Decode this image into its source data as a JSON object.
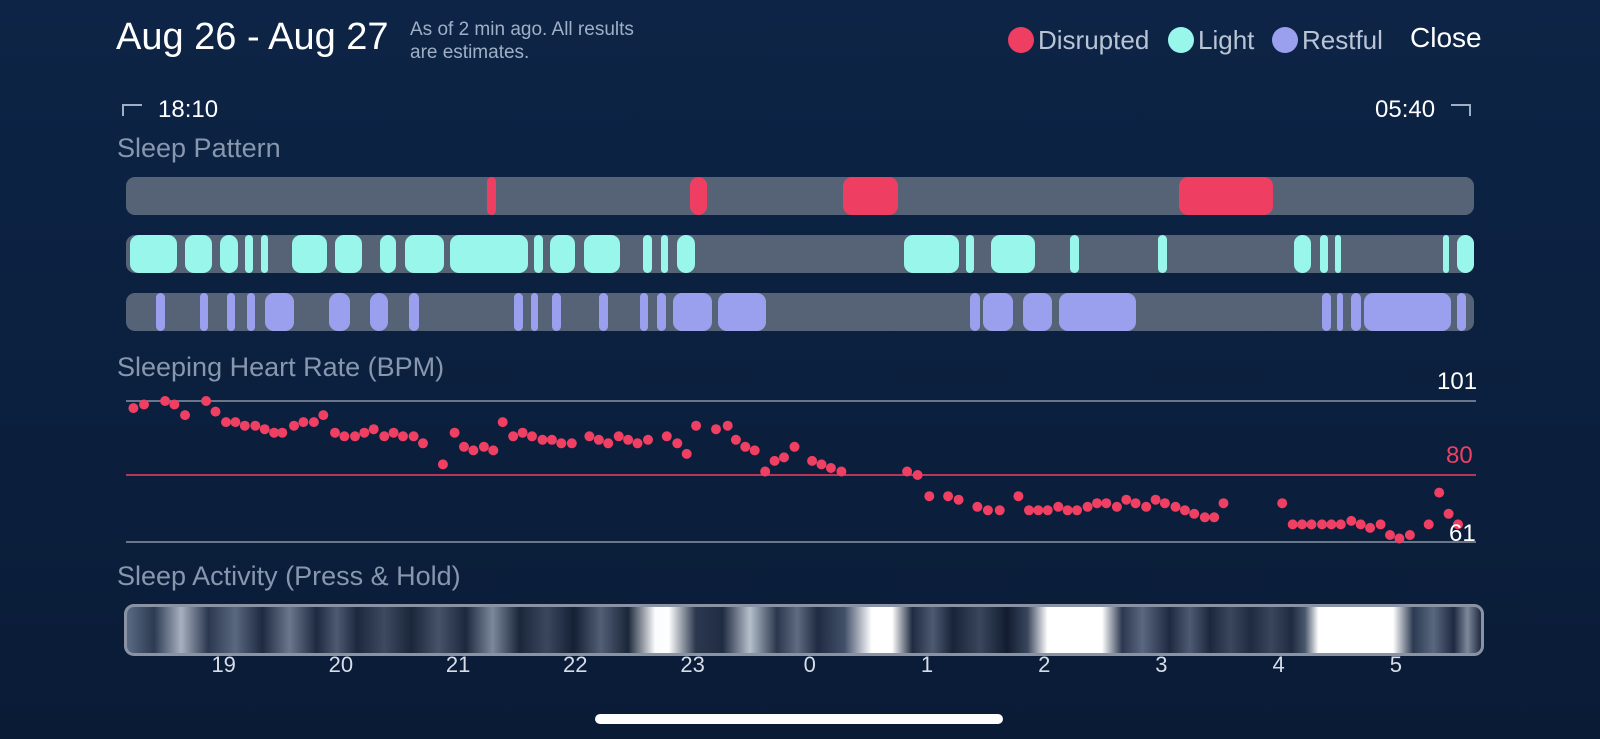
{
  "header": {
    "title": "Aug 26 - Aug 27",
    "subtitle_line1": "As of 2 min ago. All results",
    "subtitle_line2": "are estimates.",
    "legend": [
      {
        "label": "Disrupted",
        "color": "#ee3e62"
      },
      {
        "label": "Light",
        "color": "#98f7ea"
      },
      {
        "label": "Restful",
        "color": "#9aa0ee"
      }
    ],
    "close_label": "Close"
  },
  "range": {
    "start": "18:10",
    "end": "05:40"
  },
  "sleep_pattern": {
    "title": "Sleep Pattern",
    "colors": {
      "disrupted": "#ee3e62",
      "light": "#98f7ea",
      "restful": "#9aa0ee",
      "track": "#566377"
    },
    "disrupted": [
      [
        21.25,
        21.32
      ],
      [
        22.98,
        23.12
      ],
      [
        0.28,
        0.75
      ],
      [
        3.15,
        3.95
      ]
    ],
    "light": [
      [
        18.2,
        18.6
      ],
      [
        18.67,
        18.9
      ],
      [
        18.97,
        19.12
      ],
      [
        19.18,
        19.25
      ],
      [
        19.32,
        19.38
      ],
      [
        19.58,
        19.88
      ],
      [
        19.95,
        20.18
      ],
      [
        20.33,
        20.47
      ],
      [
        20.55,
        20.88
      ],
      [
        20.93,
        21.6
      ],
      [
        21.65,
        21.72
      ],
      [
        21.78,
        22.0
      ],
      [
        22.07,
        22.38
      ],
      [
        22.58,
        22.65
      ],
      [
        22.73,
        22.79
      ],
      [
        22.87,
        23.02
      ],
      [
        0.8,
        1.27
      ],
      [
        1.33,
        1.4
      ],
      [
        1.55,
        1.92
      ],
      [
        2.22,
        2.3
      ],
      [
        2.97,
        3.05
      ],
      [
        4.13,
        4.28
      ],
      [
        4.35,
        4.42
      ],
      [
        4.48,
        4.53
      ],
      [
        5.4,
        5.45
      ],
      [
        5.52,
        5.67
      ]
    ],
    "restful": [
      [
        18.42,
        18.5
      ],
      [
        18.8,
        18.87
      ],
      [
        19.03,
        19.1
      ],
      [
        19.2,
        19.27
      ],
      [
        19.35,
        19.6
      ],
      [
        19.9,
        20.08
      ],
      [
        20.25,
        20.4
      ],
      [
        20.58,
        20.67
      ],
      [
        21.48,
        21.55
      ],
      [
        21.62,
        21.68
      ],
      [
        21.8,
        21.88
      ],
      [
        22.2,
        22.28
      ],
      [
        22.55,
        22.62
      ],
      [
        22.7,
        22.77
      ],
      [
        22.83,
        23.17
      ],
      [
        23.22,
        23.63
      ],
      [
        1.37,
        1.45
      ],
      [
        1.48,
        1.73
      ],
      [
        1.82,
        2.07
      ],
      [
        2.13,
        2.78
      ],
      [
        4.37,
        4.45
      ],
      [
        4.5,
        4.55
      ],
      [
        4.62,
        4.7
      ],
      [
        4.73,
        5.47
      ],
      [
        5.52,
        5.6
      ]
    ]
  },
  "heart_rate": {
    "title": "Sleeping Heart Rate (BPM)",
    "max_label": "101",
    "avg_label": "80",
    "min_label": "61",
    "max": 101,
    "avg": 80,
    "min": 61,
    "point_color": "#ef3f63",
    "points": [
      [
        18.23,
        99
      ],
      [
        18.32,
        100
      ],
      [
        18.5,
        101
      ],
      [
        18.58,
        100
      ],
      [
        18.67,
        97
      ],
      [
        18.85,
        101
      ],
      [
        18.93,
        98
      ],
      [
        19.02,
        95
      ],
      [
        19.1,
        95
      ],
      [
        19.18,
        94
      ],
      [
        19.27,
        94
      ],
      [
        19.35,
        93
      ],
      [
        19.43,
        92
      ],
      [
        19.5,
        92
      ],
      [
        19.6,
        94
      ],
      [
        19.68,
        95
      ],
      [
        19.77,
        95
      ],
      [
        19.85,
        97
      ],
      [
        19.95,
        92
      ],
      [
        20.03,
        91
      ],
      [
        20.12,
        91
      ],
      [
        20.2,
        92
      ],
      [
        20.28,
        93
      ],
      [
        20.37,
        91
      ],
      [
        20.45,
        92
      ],
      [
        20.53,
        91
      ],
      [
        20.62,
        91
      ],
      [
        20.7,
        89
      ],
      [
        20.87,
        83
      ],
      [
        20.97,
        92
      ],
      [
        21.05,
        88
      ],
      [
        21.13,
        87
      ],
      [
        21.22,
        88
      ],
      [
        21.3,
        87
      ],
      [
        21.38,
        95
      ],
      [
        21.47,
        91
      ],
      [
        21.55,
        92
      ],
      [
        21.63,
        91
      ],
      [
        21.72,
        90
      ],
      [
        21.8,
        90
      ],
      [
        21.88,
        89
      ],
      [
        21.97,
        89
      ],
      [
        22.12,
        91
      ],
      [
        22.2,
        90
      ],
      [
        22.28,
        89
      ],
      [
        22.37,
        91
      ],
      [
        22.45,
        90
      ],
      [
        22.53,
        89
      ],
      [
        22.62,
        90
      ],
      [
        22.78,
        91
      ],
      [
        22.87,
        89
      ],
      [
        22.95,
        86
      ],
      [
        23.03,
        94
      ],
      [
        23.2,
        93
      ],
      [
        23.3,
        94
      ],
      [
        23.37,
        90
      ],
      [
        23.45,
        88
      ],
      [
        23.53,
        87
      ],
      [
        23.62,
        81
      ],
      [
        23.7,
        84
      ],
      [
        23.78,
        85
      ],
      [
        23.87,
        88
      ],
      [
        24.02,
        84
      ],
      [
        24.1,
        83
      ],
      [
        24.18,
        82
      ],
      [
        24.27,
        81
      ],
      [
        24.83,
        81
      ],
      [
        24.92,
        80
      ],
      [
        25.02,
        74
      ],
      [
        25.18,
        74
      ],
      [
        25.27,
        73
      ],
      [
        25.43,
        71
      ],
      [
        25.52,
        70
      ],
      [
        25.62,
        70
      ],
      [
        25.78,
        74
      ],
      [
        25.87,
        70
      ],
      [
        25.95,
        70
      ],
      [
        26.03,
        70
      ],
      [
        26.12,
        71
      ],
      [
        26.2,
        70
      ],
      [
        26.28,
        70
      ],
      [
        26.37,
        71
      ],
      [
        26.45,
        72
      ],
      [
        26.53,
        72
      ],
      [
        26.62,
        71
      ],
      [
        26.7,
        73
      ],
      [
        26.78,
        72
      ],
      [
        26.87,
        71
      ],
      [
        26.95,
        73
      ],
      [
        27.03,
        72
      ],
      [
        27.12,
        71
      ],
      [
        27.2,
        70
      ],
      [
        27.28,
        69
      ],
      [
        27.37,
        68
      ],
      [
        27.45,
        68
      ],
      [
        27.53,
        72
      ],
      [
        28.03,
        72
      ],
      [
        28.12,
        66
      ],
      [
        28.2,
        66
      ],
      [
        28.28,
        66
      ],
      [
        28.37,
        66
      ],
      [
        28.45,
        66
      ],
      [
        28.53,
        66
      ],
      [
        28.62,
        67
      ],
      [
        28.7,
        66
      ],
      [
        28.78,
        65
      ],
      [
        28.87,
        66
      ],
      [
        28.95,
        63
      ],
      [
        29.03,
        62
      ],
      [
        29.12,
        63
      ],
      [
        29.28,
        66
      ],
      [
        29.37,
        75
      ],
      [
        29.45,
        69
      ],
      [
        29.53,
        66
      ]
    ]
  },
  "sleep_activity": {
    "title": "Sleep Activity (Press & Hold)",
    "ticks": [
      19,
      20,
      21,
      22,
      23,
      0,
      1,
      2,
      3,
      4,
      5
    ]
  }
}
